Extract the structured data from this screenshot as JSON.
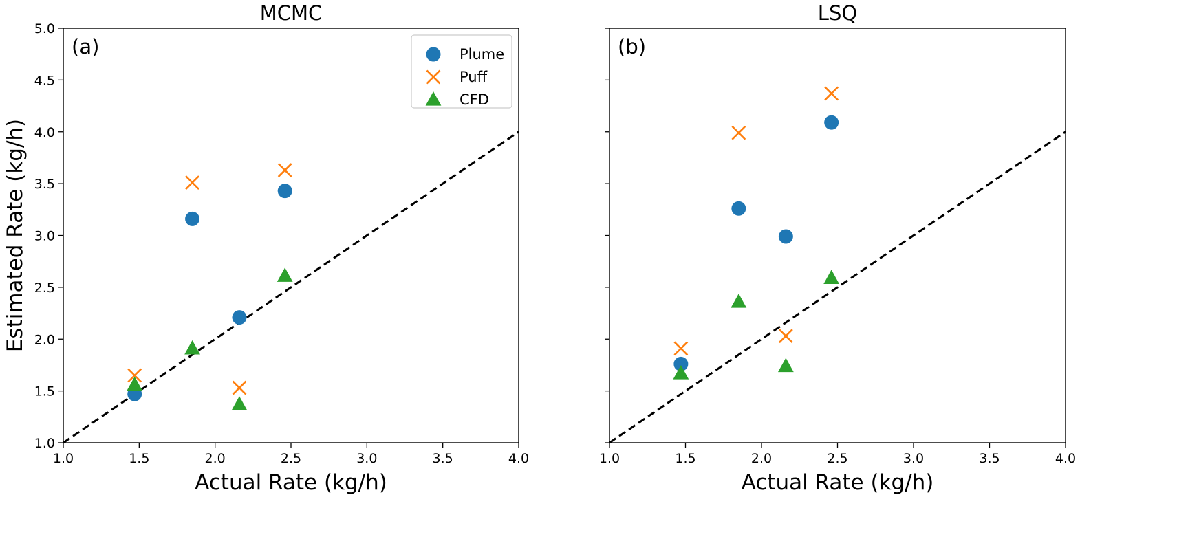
{
  "chart_data": [
    {
      "type": "scatter",
      "title": "MCMC",
      "panel_label": "(a)",
      "xlabel": "Actual Rate (kg/h)",
      "ylabel": "Estimated Rate (kg/h)",
      "xlim": [
        1.0,
        4.0
      ],
      "ylim": [
        1.0,
        5.0
      ],
      "xticks": [
        "1.0",
        "1.5",
        "2.0",
        "2.5",
        "3.0",
        "3.5",
        "4.0"
      ],
      "yticks": [
        "1.0",
        "1.5",
        "2.0",
        "2.5",
        "3.0",
        "3.5",
        "4.0",
        "4.5",
        "5.0"
      ],
      "grid": false,
      "legend": "top-right",
      "reference_line": {
        "style": "dashed",
        "from": [
          1.0,
          1.0
        ],
        "to": [
          4.0,
          4.0
        ]
      },
      "series": [
        {
          "name": "Plume",
          "marker": "circle",
          "color": "#1f77b4",
          "x": [
            1.47,
            1.85,
            2.16,
            2.46
          ],
          "y": [
            1.47,
            3.16,
            2.21,
            3.43
          ]
        },
        {
          "name": "Puff",
          "marker": "x",
          "color": "#ff7f0e",
          "x": [
            1.47,
            1.85,
            2.16,
            2.46
          ],
          "y": [
            1.65,
            3.51,
            1.53,
            3.63
          ]
        },
        {
          "name": "CFD",
          "marker": "triangle",
          "color": "#2ca02c",
          "x": [
            1.47,
            1.85,
            2.16,
            2.46
          ],
          "y": [
            1.56,
            1.91,
            1.37,
            2.61
          ]
        }
      ]
    },
    {
      "type": "scatter",
      "title": "LSQ",
      "panel_label": "(b)",
      "xlabel": "Actual Rate (kg/h)",
      "ylabel": "",
      "xlim": [
        1.0,
        4.0
      ],
      "ylim": [
        1.0,
        5.0
      ],
      "xticks": [
        "1.0",
        "1.5",
        "2.0",
        "2.5",
        "3.0",
        "3.5",
        "4.0"
      ],
      "yticks": [],
      "grid": false,
      "legend": "none",
      "reference_line": {
        "style": "dashed",
        "from": [
          1.0,
          1.0
        ],
        "to": [
          4.0,
          4.0
        ]
      },
      "series": [
        {
          "name": "Plume",
          "marker": "circle",
          "color": "#1f77b4",
          "x": [
            1.47,
            1.85,
            2.16,
            2.46
          ],
          "y": [
            1.76,
            3.26,
            2.99,
            4.09
          ]
        },
        {
          "name": "Puff",
          "marker": "x",
          "color": "#ff7f0e",
          "x": [
            1.47,
            1.85,
            2.16,
            2.46
          ],
          "y": [
            1.91,
            3.99,
            2.03,
            4.37
          ]
        },
        {
          "name": "CFD",
          "marker": "triangle",
          "color": "#2ca02c",
          "x": [
            1.47,
            1.85,
            2.16,
            2.46
          ],
          "y": [
            1.67,
            2.36,
            1.74,
            2.59
          ]
        }
      ]
    }
  ]
}
